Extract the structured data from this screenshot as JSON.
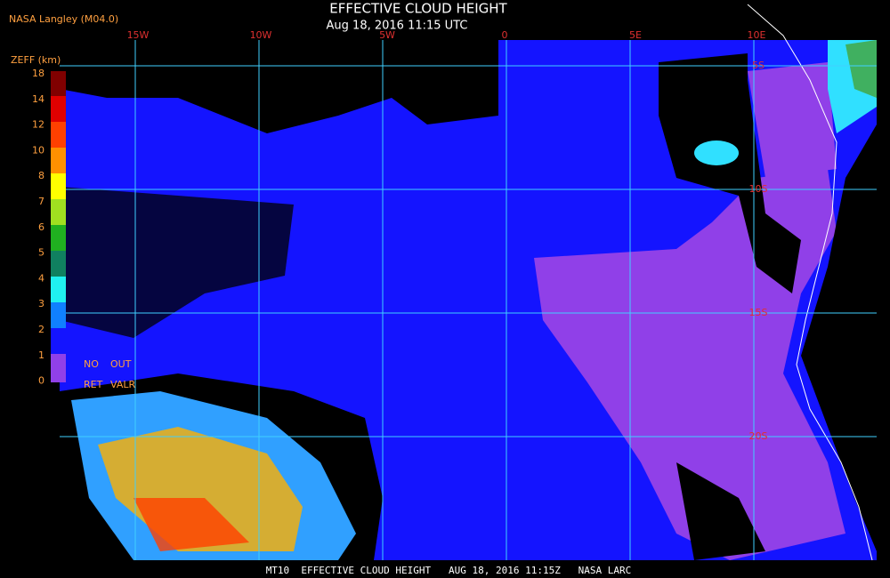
{
  "header": {
    "source": "NASA Langley (M04.0)",
    "title": "EFFECTIVE CLOUD HEIGHT",
    "timestamp": "Aug 18, 2016 11:15 UTC"
  },
  "legend": {
    "title": "ZEFF (km)",
    "ticks": [
      "18",
      "14",
      "12",
      "10",
      "8",
      "7",
      "6",
      "5",
      "4",
      "3",
      "2",
      "1",
      "0"
    ],
    "no_ret": [
      "NO",
      "RET"
    ],
    "out_valr": [
      "OUT",
      "VALR"
    ]
  },
  "lon_labels": [
    "15W",
    "10W",
    "5W",
    "0",
    "5E",
    "10E"
  ],
  "lat_labels": [
    "5S",
    "10S",
    "15S",
    "20S"
  ],
  "footer": "MT10  EFFECTIVE CLOUD HEIGHT   AUG 18, 2016 11:15Z   NASA LARC"
}
